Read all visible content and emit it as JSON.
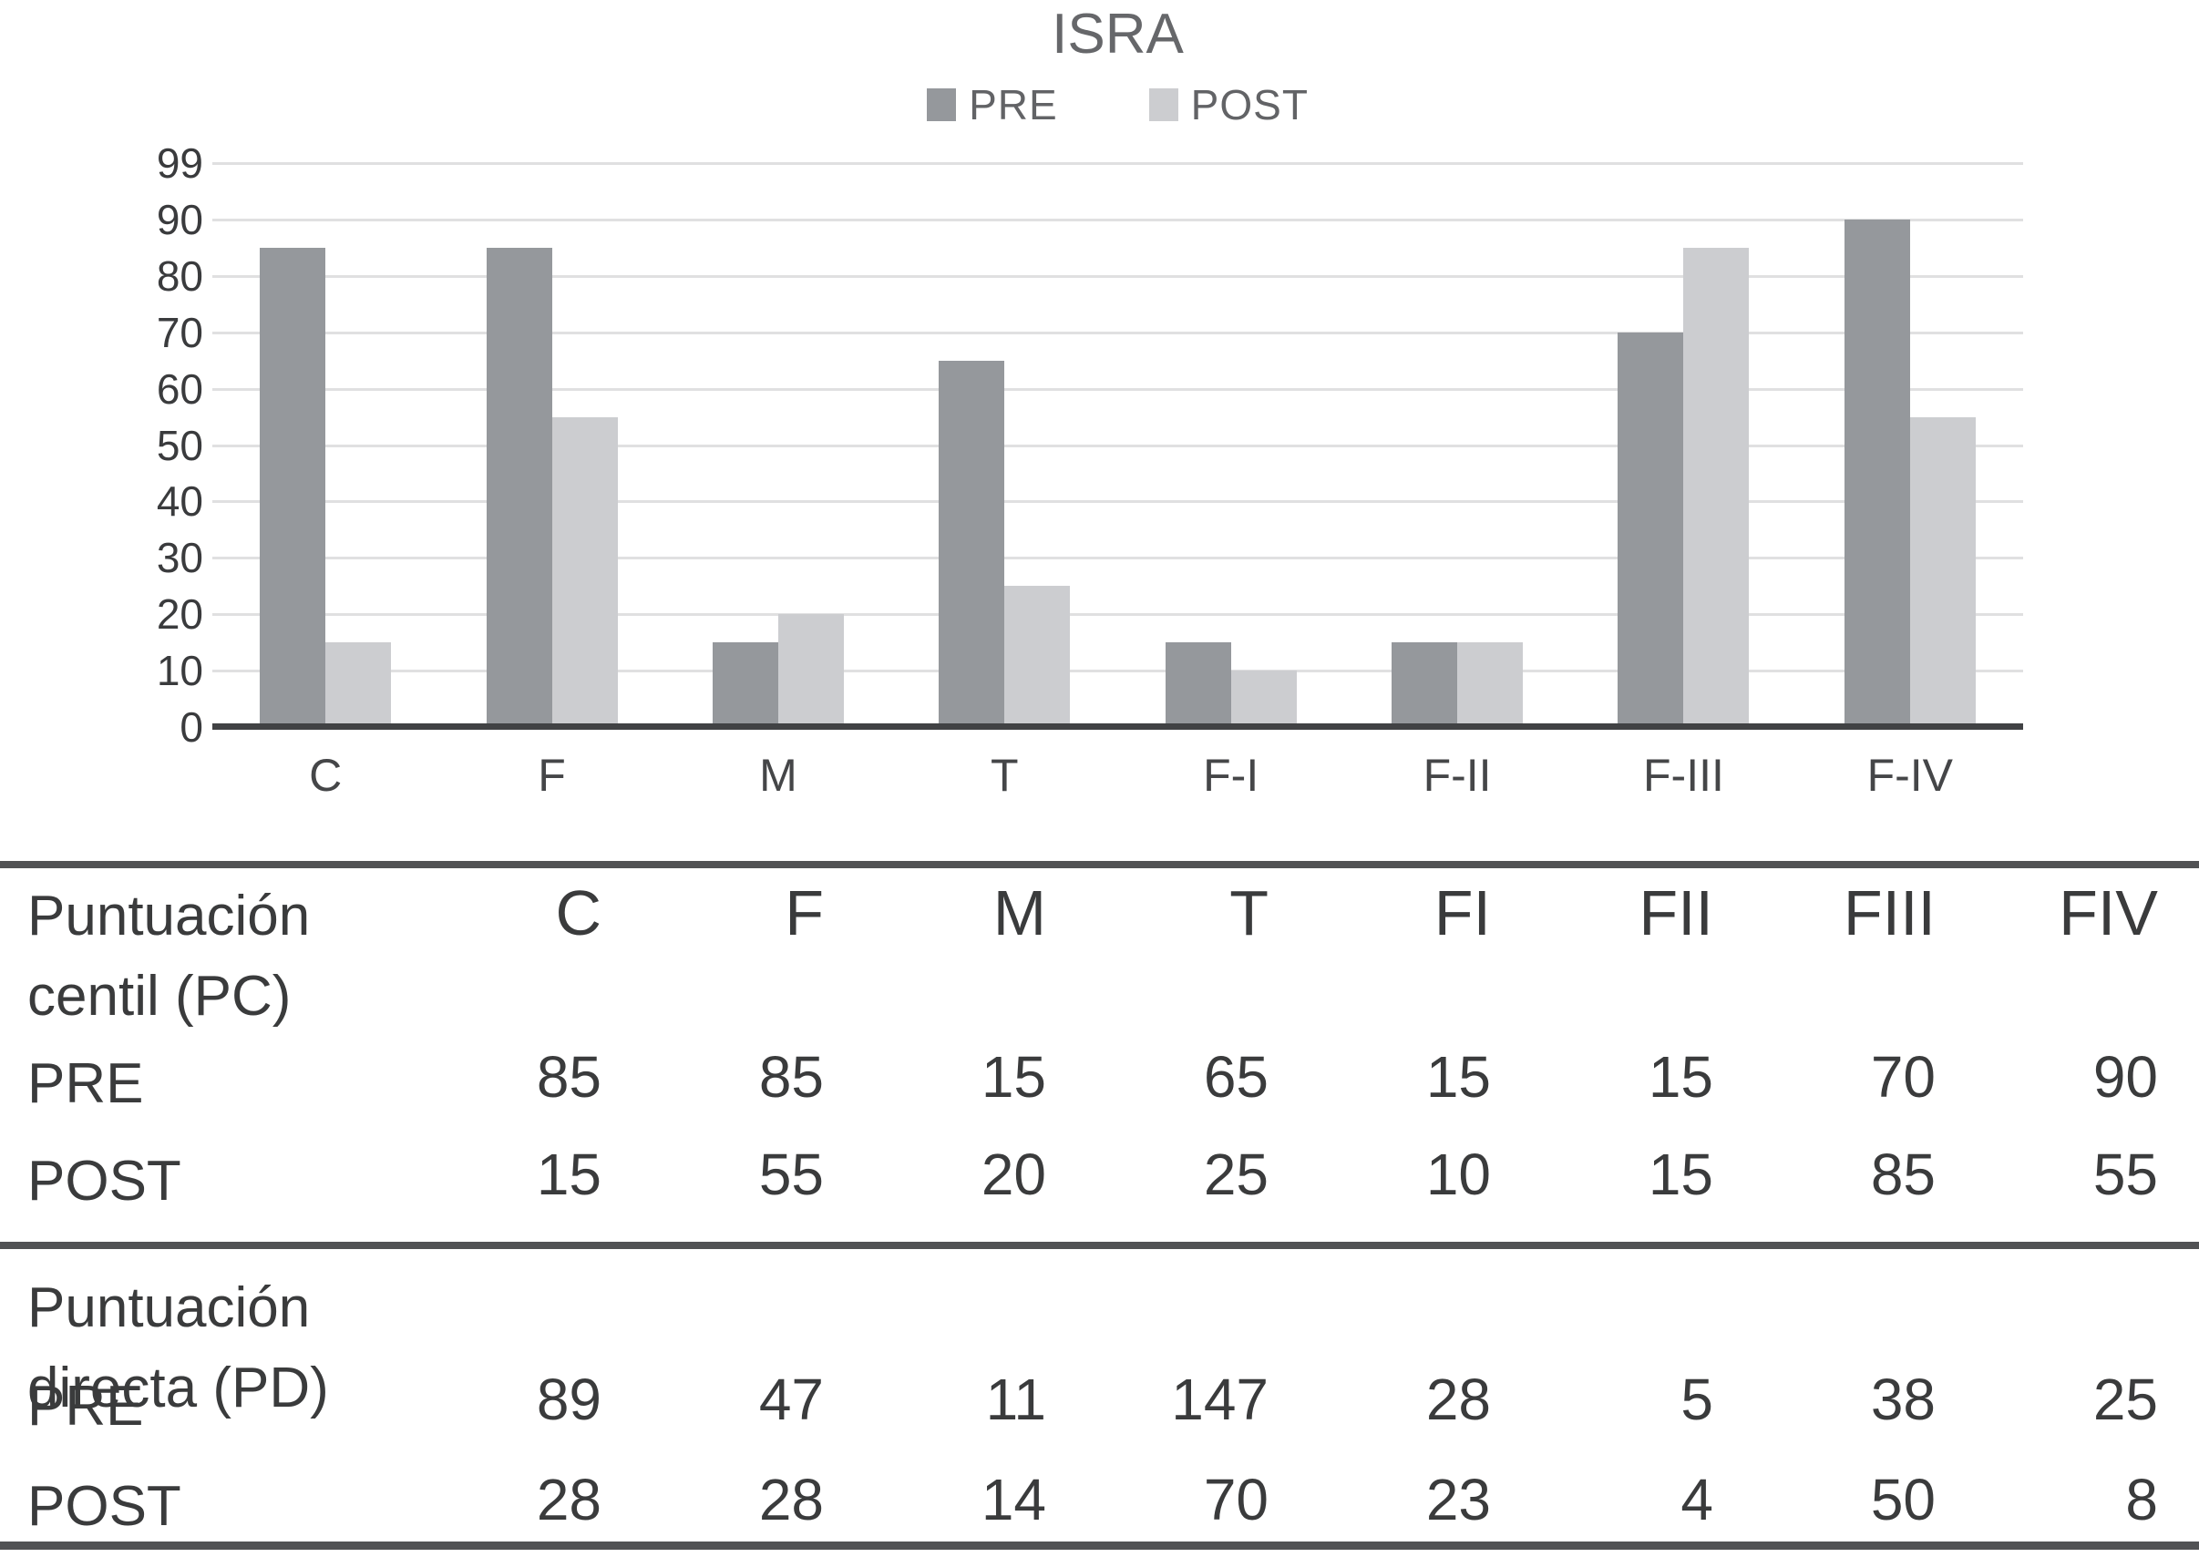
{
  "title": "ISRA",
  "legend": {
    "pre": "PRE",
    "post": "POST"
  },
  "colors": {
    "pre_bar": "#95989c",
    "post_bar": "#cccdd0",
    "gridline": "#e0e0e1",
    "axis": "#414244",
    "rule": "#515254",
    "title_text": "#66676a",
    "legend_text": "#626366",
    "table_text": "#3a3b3c"
  },
  "chart_data": {
    "type": "bar",
    "title": "ISRA",
    "categories": [
      "C",
      "F",
      "M",
      "T",
      "F-I",
      "F-II",
      "F-III",
      "F-IV"
    ],
    "series": [
      {
        "name": "PRE",
        "values": [
          85,
          85,
          15,
          65,
          15,
          15,
          70,
          90
        ]
      },
      {
        "name": "POST",
        "values": [
          15,
          55,
          20,
          25,
          10,
          15,
          85,
          55
        ]
      }
    ],
    "yticks": [
      99,
      90,
      80,
      70,
      60,
      50,
      40,
      30,
      20,
      10,
      0
    ],
    "ylim": [
      0,
      99
    ],
    "xlabel": "",
    "ylabel": "",
    "grid": "horizontal",
    "legend_position": "top-center"
  },
  "table": {
    "columns": [
      "C",
      "F",
      "M",
      "T",
      "FI",
      "FII",
      "FIII",
      "FIV"
    ],
    "sections": [
      {
        "label_lines": [
          "Puntuación",
          "centil (PC)"
        ],
        "rows": [
          {
            "label": "PRE",
            "values": [
              85,
              85,
              15,
              65,
              15,
              15,
              70,
              90
            ]
          },
          {
            "label": "POST",
            "values": [
              15,
              55,
              20,
              25,
              10,
              15,
              85,
              55
            ]
          }
        ]
      },
      {
        "label_lines": [
          "Puntuación directa (PD)"
        ],
        "rows": [
          {
            "label": "PRE",
            "values": [
              89,
              47,
              11,
              147,
              28,
              5,
              38,
              25
            ]
          },
          {
            "label": "POST",
            "values": [
              28,
              28,
              14,
              70,
              23,
              4,
              50,
              8
            ]
          }
        ]
      }
    ]
  }
}
